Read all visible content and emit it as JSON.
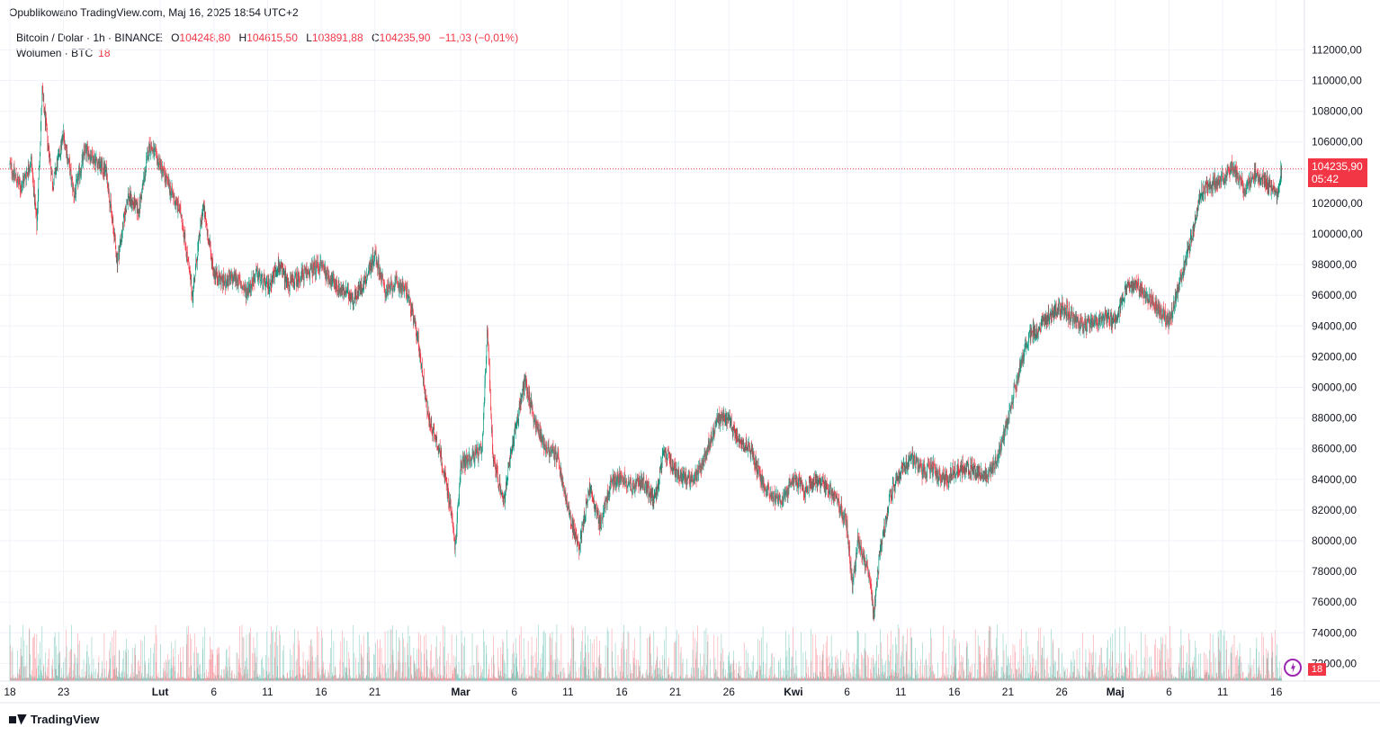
{
  "header": {
    "published": "Opublikowano TradingView.com, Maj 16, 2025 18:54 UTC+2"
  },
  "legend": {
    "symbol": "Bitcoin / Dolar · 1h · BINANCE",
    "o_label": "O",
    "o_value": "104248,80",
    "h_label": "H",
    "h_value": "104615,50",
    "l_label": "L",
    "l_value": "103891,88",
    "c_label": "C",
    "c_value": "104235,90",
    "change": "−11,03 (−0,01%)",
    "volume_label": "Wolumen · BTC",
    "volume_value": "18"
  },
  "price_badge": {
    "price": "104235,90",
    "countdown": "05:42"
  },
  "volume_badge": "18",
  "logo_text": "TradingView",
  "colors": {
    "up": "#089981",
    "down": "#f23645",
    "grid": "#f0f3fa",
    "text": "#131722"
  },
  "chart_data": {
    "type": "candlestick",
    "symbol": "Bitcoin / Dolar",
    "interval": "1h",
    "exchange": "BINANCE",
    "last_price": 104235.9,
    "y_ticks": [
      "112000,00",
      "110000,00",
      "108000,00",
      "106000,00",
      "104000,00",
      "102000,00",
      "100000,00",
      "98000,00",
      "96000,00",
      "94000,00",
      "92000,00",
      "90000,00",
      "88000,00",
      "86000,00",
      "84000,00",
      "82000,00",
      "80000,00",
      "78000,00",
      "76000,00",
      "74000,00",
      "72000,00"
    ],
    "y_values": [
      112000,
      110000,
      108000,
      106000,
      104000,
      102000,
      100000,
      98000,
      96000,
      94000,
      92000,
      90000,
      88000,
      86000,
      84000,
      82000,
      80000,
      78000,
      76000,
      74000,
      72000
    ],
    "x_ticks": [
      {
        "label": "18",
        "day": 0
      },
      {
        "label": "23",
        "day": 5
      },
      {
        "label": "Lut",
        "day": 14,
        "bold": true
      },
      {
        "label": "6",
        "day": 19
      },
      {
        "label": "11",
        "day": 24
      },
      {
        "label": "16",
        "day": 29
      },
      {
        "label": "21",
        "day": 34
      },
      {
        "label": "Mar",
        "day": 42,
        "bold": true
      },
      {
        "label": "6",
        "day": 47
      },
      {
        "label": "11",
        "day": 52
      },
      {
        "label": "16",
        "day": 57
      },
      {
        "label": "21",
        "day": 62
      },
      {
        "label": "26",
        "day": 67
      },
      {
        "label": "Kwi",
        "day": 73,
        "bold": true
      },
      {
        "label": "6",
        "day": 78
      },
      {
        "label": "11",
        "day": 83
      },
      {
        "label": "16",
        "day": 88
      },
      {
        "label": "21",
        "day": 93
      },
      {
        "label": "26",
        "day": 98
      },
      {
        "label": "Maj",
        "day": 103,
        "bold": true
      },
      {
        "label": "6",
        "day": 108
      },
      {
        "label": "11",
        "day": 113
      },
      {
        "label": "16",
        "day": 118
      }
    ],
    "ylim": [
      71000,
      113000
    ],
    "path": [
      [
        0,
        104500
      ],
      [
        1,
        103000
      ],
      [
        2,
        104800
      ],
      [
        2.5,
        100500
      ],
      [
        3,
        109200
      ],
      [
        4,
        103200
      ],
      [
        5,
        106500
      ],
      [
        6,
        102500
      ],
      [
        7,
        105500
      ],
      [
        8,
        104800
      ],
      [
        9,
        104000
      ],
      [
        10,
        98200
      ],
      [
        11,
        102500
      ],
      [
        12,
        101500
      ],
      [
        13,
        105800
      ],
      [
        14,
        104500
      ],
      [
        15,
        102800
      ],
      [
        16,
        101200
      ],
      [
        17,
        96000
      ],
      [
        18,
        101800
      ],
      [
        19,
        97500
      ],
      [
        20,
        96800
      ],
      [
        21,
        97200
      ],
      [
        22,
        96200
      ],
      [
        23,
        97400
      ],
      [
        24,
        96500
      ],
      [
        25,
        98000
      ],
      [
        26,
        96700
      ],
      [
        27,
        97200
      ],
      [
        28,
        97600
      ],
      [
        29,
        98000
      ],
      [
        30,
        96900
      ],
      [
        31,
        96300
      ],
      [
        32,
        95800
      ],
      [
        33,
        96800
      ],
      [
        34,
        98700
      ],
      [
        35,
        96200
      ],
      [
        36,
        96800
      ],
      [
        37,
        96300
      ],
      [
        38,
        93200
      ],
      [
        39,
        88000
      ],
      [
        40,
        86000
      ],
      [
        41,
        82500
      ],
      [
        41.5,
        79500
      ],
      [
        42,
        85000
      ],
      [
        43,
        85500
      ],
      [
        44,
        85800
      ],
      [
        44.5,
        94000
      ],
      [
        45,
        85500
      ],
      [
        46,
        82500
      ],
      [
        47,
        87000
      ],
      [
        48,
        90500
      ],
      [
        49,
        87500
      ],
      [
        50,
        86000
      ],
      [
        51,
        85500
      ],
      [
        52,
        82000
      ],
      [
        53,
        79500
      ],
      [
        54,
        83500
      ],
      [
        55,
        81000
      ],
      [
        56,
        83800
      ],
      [
        57,
        84200
      ],
      [
        58,
        83500
      ],
      [
        59,
        83900
      ],
      [
        60,
        82500
      ],
      [
        61,
        85800
      ],
      [
        62,
        84600
      ],
      [
        63,
        84000
      ],
      [
        64,
        84200
      ],
      [
        65,
        86000
      ],
      [
        66,
        88000
      ],
      [
        67,
        87800
      ],
      [
        68,
        86600
      ],
      [
        69,
        86000
      ],
      [
        70,
        84000
      ],
      [
        71,
        83000
      ],
      [
        72,
        82500
      ],
      [
        73,
        84200
      ],
      [
        74,
        83200
      ],
      [
        75,
        84000
      ],
      [
        76,
        83500
      ],
      [
        77,
        82800
      ],
      [
        78,
        81000
      ],
      [
        78.5,
        76800
      ],
      [
        79,
        80000
      ],
      [
        80,
        78000
      ],
      [
        80.5,
        75000
      ],
      [
        81,
        79000
      ],
      [
        82,
        83000
      ],
      [
        83,
        84500
      ],
      [
        84,
        85500
      ],
      [
        85,
        84500
      ],
      [
        86,
        84700
      ],
      [
        87,
        84000
      ],
      [
        88,
        84500
      ],
      [
        89,
        84800
      ],
      [
        90,
        84500
      ],
      [
        91,
        84300
      ],
      [
        92,
        85300
      ],
      [
        93,
        87800
      ],
      [
        94,
        91000
      ],
      [
        95,
        93500
      ],
      [
        96,
        93800
      ],
      [
        97,
        94800
      ],
      [
        98,
        95300
      ],
      [
        99,
        94500
      ],
      [
        100,
        94000
      ],
      [
        101,
        94300
      ],
      [
        102,
        94600
      ],
      [
        103,
        94300
      ],
      [
        104,
        96500
      ],
      [
        105,
        96800
      ],
      [
        106,
        95900
      ],
      [
        107,
        95200
      ],
      [
        108,
        94200
      ],
      [
        109,
        96800
      ],
      [
        110,
        99500
      ],
      [
        111,
        102800
      ],
      [
        112,
        103300
      ],
      [
        113,
        103600
      ],
      [
        114,
        104500
      ],
      [
        115,
        102800
      ],
      [
        116,
        103900
      ],
      [
        117,
        103500
      ],
      [
        118,
        102400
      ],
      [
        118.5,
        104236
      ]
    ],
    "volume_label": "Wolumen · BTC",
    "volume_last": 18
  }
}
